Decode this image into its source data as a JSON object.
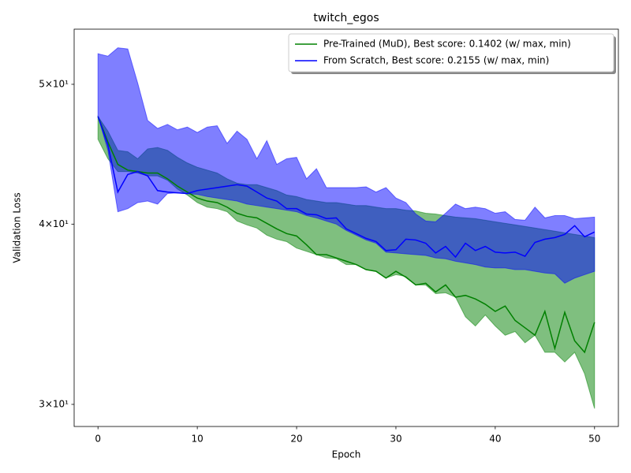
{
  "chart_data": {
    "type": "line",
    "title": "twitch_egos",
    "x_label": "Epoch",
    "y_label": "Validation Loss",
    "x": [
      0,
      1,
      2,
      3,
      4,
      5,
      6,
      7,
      8,
      9,
      10,
      11,
      12,
      13,
      14,
      15,
      16,
      17,
      18,
      19,
      20,
      21,
      22,
      23,
      24,
      25,
      26,
      27,
      28,
      29,
      30,
      31,
      32,
      33,
      34,
      35,
      36,
      37,
      38,
      39,
      40,
      41,
      42,
      43,
      44,
      45,
      46,
      47,
      48,
      49,
      50
    ],
    "xlim": [
      -2.4,
      52.4
    ],
    "xticks": [
      0,
      10,
      20,
      30,
      40,
      50
    ],
    "ylim": [
      28.96,
      54.6
    ],
    "log_y": true,
    "yticks": [
      {
        "value": 30,
        "label": "3×10¹"
      },
      {
        "value": 40,
        "label": "4×10¹"
      },
      {
        "value": 50,
        "label": "5×10¹"
      }
    ],
    "legend": "upper right",
    "series": [
      {
        "name": "Pre-Trained (MuD), Best score: 0.1402 (w/ max, min)",
        "color": "#008000",
        "values": [
          47.5,
          45.6,
          44.0,
          43.6,
          43.5,
          43.4,
          43.4,
          43.0,
          42.5,
          42.1,
          41.7,
          41.5,
          41.4,
          41.1,
          40.7,
          40.5,
          40.4,
          40.05,
          39.7,
          39.4,
          39.25,
          38.7,
          38.1,
          38.1,
          37.9,
          37.7,
          37.5,
          37.2,
          37.1,
          36.7,
          37.1,
          36.75,
          36.3,
          36.4,
          35.9,
          36.3,
          35.6,
          35.7,
          35.5,
          35.2,
          34.8,
          35.1,
          34.3,
          33.9,
          33.5,
          34.8,
          32.8,
          34.75,
          33.2,
          32.6,
          34.2
        ],
        "max": [
          47.5,
          46.4,
          45.0,
          44.9,
          44.4,
          45.1,
          45.2,
          45.0,
          44.5,
          44.1,
          43.8,
          43.6,
          43.4,
          43.0,
          42.7,
          42.6,
          42.6,
          42.4,
          42.2,
          41.9,
          41.8,
          41.6,
          41.5,
          41.4,
          41.4,
          41.3,
          41.2,
          41.2,
          41.1,
          41.0,
          41.0,
          40.9,
          40.85,
          40.7,
          40.65,
          40.55,
          40.45,
          40.4,
          40.35,
          40.25,
          40.15,
          40.05,
          39.95,
          39.85,
          39.75,
          39.65,
          39.55,
          39.45,
          39.35,
          39.25,
          39.15
        ],
        "min": [
          45.8,
          44.4,
          43.5,
          43.5,
          43.4,
          43.2,
          43.2,
          42.9,
          42.3,
          41.9,
          41.4,
          41.1,
          41.0,
          40.8,
          40.2,
          39.95,
          39.75,
          39.3,
          39.05,
          38.9,
          38.5,
          38.3,
          38.1,
          37.9,
          37.85,
          37.5,
          37.5,
          37.2,
          37.1,
          36.7,
          36.9,
          36.8,
          36.3,
          36.3,
          35.8,
          35.85,
          35.6,
          34.5,
          34.0,
          34.6,
          34.0,
          33.5,
          33.7,
          33.1,
          33.5,
          32.6,
          32.6,
          32.1,
          32.6,
          31.5,
          29.8
        ]
      },
      {
        "name": "From Scratch, Best score: 0.2155 (w/ max, min)",
        "color": "#0000ff",
        "values": [
          47.5,
          45.4,
          42.1,
          43.3,
          43.5,
          43.2,
          42.2,
          42.1,
          42.05,
          42.0,
          42.2,
          42.3,
          42.4,
          42.5,
          42.6,
          42.5,
          42.1,
          41.7,
          41.5,
          41.0,
          41.0,
          40.65,
          40.6,
          40.35,
          40.4,
          39.7,
          39.4,
          39.1,
          38.9,
          38.35,
          38.4,
          39.05,
          39.0,
          38.8,
          38.2,
          38.6,
          37.95,
          38.8,
          38.35,
          38.6,
          38.25,
          38.2,
          38.25,
          38.0,
          38.85,
          39.05,
          39.15,
          39.35,
          39.9,
          39.2,
          39.5
        ],
        "max": [
          52.5,
          52.3,
          53.0,
          52.9,
          50.1,
          47.2,
          46.6,
          46.9,
          46.5,
          46.7,
          46.3,
          46.7,
          46.8,
          45.5,
          46.4,
          45.8,
          44.4,
          45.7,
          44.0,
          44.4,
          44.5,
          43.0,
          43.7,
          42.4,
          42.4,
          42.4,
          42.4,
          42.45,
          42.1,
          42.4,
          41.7,
          41.4,
          40.65,
          40.2,
          40.15,
          40.7,
          41.3,
          41.0,
          41.1,
          41.0,
          40.7,
          40.8,
          40.3,
          40.25,
          41.1,
          40.4,
          40.55,
          40.55,
          40.35,
          40.4,
          40.45
        ],
        "min": [
          47.5,
          45.0,
          40.8,
          41.0,
          41.4,
          41.5,
          41.3,
          42.0,
          42.05,
          41.98,
          41.95,
          41.8,
          41.7,
          41.6,
          41.5,
          41.3,
          41.2,
          41.1,
          41.0,
          40.9,
          40.8,
          40.55,
          40.4,
          40.2,
          40.0,
          39.6,
          39.3,
          39.0,
          38.8,
          38.25,
          38.2,
          38.15,
          38.1,
          38.05,
          37.9,
          37.85,
          37.7,
          37.6,
          37.5,
          37.35,
          37.3,
          37.3,
          37.2,
          37.2,
          37.1,
          37.0,
          36.95,
          36.4,
          36.7,
          36.9,
          37.1
        ]
      }
    ]
  }
}
